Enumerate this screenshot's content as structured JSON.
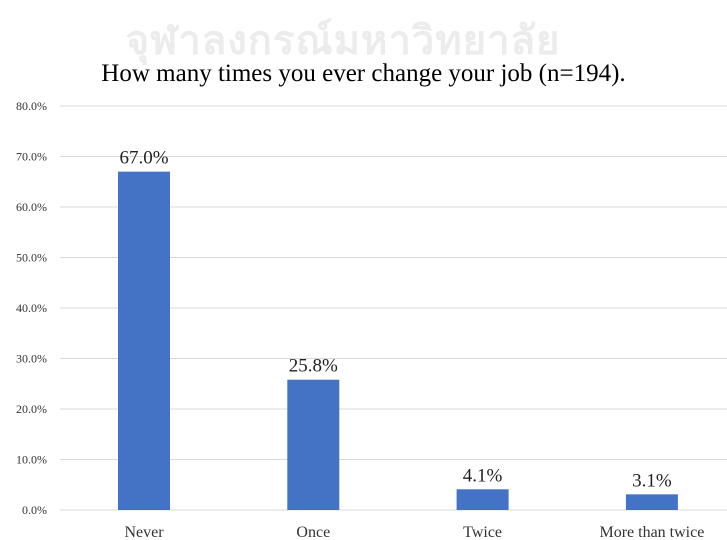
{
  "watermark": "จุฬาลงกรณ์มหาวิทยาลัย",
  "chart_data": {
    "type": "bar",
    "title": "How many times you ever change your job (n=194).",
    "xlabel": "",
    "ylabel": "",
    "categories": [
      "Never",
      "Once",
      "Twice",
      "More than twice"
    ],
    "values": [
      67.0,
      25.8,
      4.1,
      3.1
    ],
    "data_labels": [
      "67.0%",
      "25.8%",
      "4.1%",
      "3.1%"
    ],
    "ylim": [
      0,
      80
    ],
    "yticks": [
      0,
      10,
      20,
      30,
      40,
      50,
      60,
      70,
      80
    ],
    "ytick_labels": [
      "0.0%",
      "10.0%",
      "20.0%",
      "30.0%",
      "40.0%",
      "50.0%",
      "60.0%",
      "70.0%",
      "80.0%"
    ],
    "grid": true,
    "legend": "none",
    "bar_color": "#4472c4",
    "grid_color": "#d9d9d9"
  }
}
